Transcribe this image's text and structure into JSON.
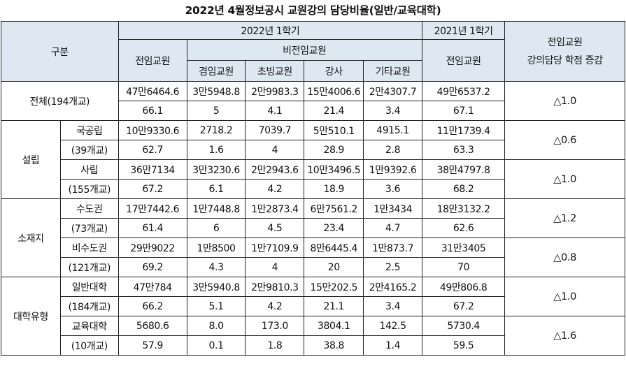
{
  "title": "2022년 4월정보공시 교원강의 담당비율(일반/교육대학)",
  "header": {
    "category": "구분",
    "sem2022": "2022년 1학기",
    "sem2021": "2021년 1학기",
    "change_line1": "전임교원",
    "change_line2": "강의담당 학점 증감",
    "fulltime": "전임교원",
    "nonfulltime": "비전임교원",
    "fulltime_2021": "전임교원",
    "sub": [
      "겸임교원",
      "초빙교원",
      "강사",
      "기타교원"
    ]
  },
  "groups": {
    "total": "전체(194개교)",
    "founding": "설립",
    "location": "소재지",
    "univ_type": "대학유형"
  },
  "rows": [
    {
      "label1": "국공립",
      "label2": "(39개교)",
      "credits": [
        "10만9330.6",
        "2718.2",
        "7039.7",
        "5만510.1",
        "4915.1",
        "11만1739.4"
      ],
      "ratio": [
        "62.7",
        "1.6",
        "4",
        "28.9",
        "2.8",
        "63.3"
      ],
      "change": "△0.6"
    },
    {
      "label1": "사립",
      "label2": "(155개교)",
      "credits": [
        "36만7134",
        "3만3230.6",
        "2만2943.6",
        "10만3496.5",
        "1만9392.6",
        "38만4797.8"
      ],
      "ratio": [
        "67.2",
        "6.1",
        "4.2",
        "18.9",
        "3.6",
        "68.2"
      ],
      "change": "△1.0"
    },
    {
      "label1": "수도권",
      "label2": "(73개교)",
      "credits": [
        "17만7442.6",
        "1만7448.8",
        "1만2873.4",
        "6만7561.2",
        "1만3434",
        "18만3132.2"
      ],
      "ratio": [
        "61.4",
        "6",
        "4.5",
        "23.4",
        "4.7",
        "62.6"
      ],
      "change": "△1.2"
    },
    {
      "label1": "비수도권",
      "label2": "(121개교)",
      "credits": [
        "29만9022",
        "1만8500",
        "1만7109.9",
        "8만6445.4",
        "1만873.7",
        "31만3405"
      ],
      "ratio": [
        "69.2",
        "4.3",
        "4",
        "20",
        "2.5",
        "70"
      ],
      "change": "△0.8"
    },
    {
      "label1": "일반대학",
      "label2": "(184개교)",
      "credits": [
        "47만784",
        "3만5940.8",
        "2만9810.3",
        "15만202.5",
        "2만4165.2",
        "49만806.8"
      ],
      "ratio": [
        "66.2",
        "5.1",
        "4.2",
        "21.1",
        "3.4",
        "67.2"
      ],
      "change": "△1.0"
    },
    {
      "label1": "교육대학",
      "label2": "(10개교)",
      "credits": [
        "5680.6",
        "8.0",
        "173.0",
        "3804.1",
        "142.5",
        "5730.4"
      ],
      "ratio": [
        "57.9",
        "0.1",
        "1.8",
        "38.8",
        "1.4",
        "59.5"
      ],
      "change": "△1.6"
    }
  ],
  "total": {
    "credits": [
      "47만6464.6",
      "3만5948.8",
      "2만9983.3",
      "15만4006.6",
      "2만4307.7",
      "49만6537.2"
    ],
    "ratio": [
      "66.1",
      "5",
      "4.1",
      "21.4",
      "3.4",
      "67.1"
    ],
    "change": "△1.0"
  }
}
